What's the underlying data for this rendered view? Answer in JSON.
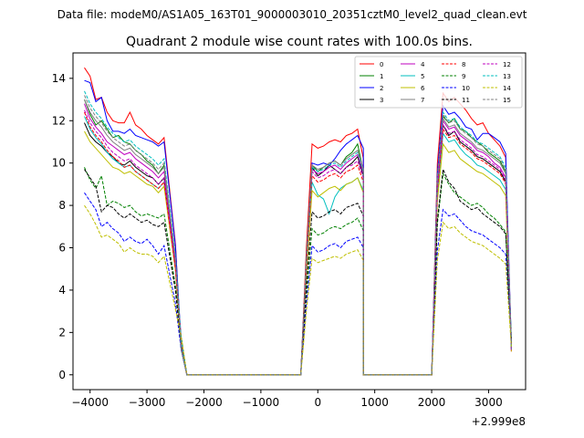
{
  "suptitle": "Data file: modeM0/AS1A05_163T01_9000003010_20351cztM0_level2_quad_clean.evt",
  "chart_data": {
    "type": "line",
    "title": "Quadrant 2 module wise count rates with 100.0s bins.",
    "xlabel": "",
    "ylabel": "",
    "offset_label": "+2.999e8",
    "xlim": [
      -4300,
      3650
    ],
    "ylim": [
      -0.7,
      15.2
    ],
    "xticks": [
      -4000,
      -3000,
      -2000,
      -1000,
      0,
      1000,
      2000,
      3000
    ],
    "yticks": [
      0,
      2,
      4,
      6,
      8,
      10,
      12,
      14
    ],
    "legend_position": "upper right",
    "legend_columns": 4,
    "series": [
      {
        "name": "0",
        "color": "#ff0000",
        "dash": "solid",
        "seg": [
          [
            14.5,
            14.1,
            13.0,
            13.1,
            12.4,
            12.0,
            11.9,
            11.9,
            12.4,
            11.8,
            11.6,
            11.3,
            11.1,
            10.9,
            11.2
          ],
          [
            10.9,
            10.7,
            10.8,
            11.0,
            11.1,
            11.0,
            11.3,
            11.4,
            11.6,
            10.2
          ],
          [
            13.3,
            12.9,
            13.1,
            12.8,
            12.5,
            12.1,
            11.8,
            11.9,
            11.4,
            11.1,
            10.8
          ]
        ]
      },
      {
        "name": "1",
        "color": "#008000",
        "dash": "solid",
        "seg": [
          [
            13.0,
            12.3,
            11.8,
            12.0,
            11.6,
            11.2,
            11.3,
            11.0,
            10.9,
            10.6,
            10.4,
            10.1,
            9.9,
            9.5,
            9.9
          ],
          [
            9.9,
            9.6,
            9.8,
            10.0,
            10.1,
            9.9,
            10.3,
            10.5,
            10.9,
            9.6
          ],
          [
            12.2,
            11.9,
            12.1,
            11.6,
            11.5,
            11.2,
            11.0,
            10.8,
            10.5,
            10.3,
            10.1
          ]
        ]
      },
      {
        "name": "2",
        "color": "#0000ff",
        "dash": "solid",
        "seg": [
          [
            13.9,
            13.8,
            12.9,
            13.1,
            12.0,
            11.5,
            11.5,
            11.4,
            11.6,
            11.3,
            11.2,
            11.1,
            11.0,
            10.8,
            11.0
          ],
          [
            10.0,
            9.9,
            10.0,
            9.9,
            10.2,
            10.6,
            10.9,
            11.1,
            11.3,
            10.7
          ],
          [
            12.7,
            12.3,
            12.4,
            12.1,
            11.7,
            11.6,
            11.1,
            11.4,
            11.4,
            11.2,
            11.0
          ]
        ]
      },
      {
        "name": "3",
        "color": "#000000",
        "dash": "solid",
        "seg": [
          [
            11.9,
            11.3,
            11.0,
            10.8,
            10.5,
            10.3,
            10.0,
            9.9,
            10.1,
            9.8,
            9.6,
            9.4,
            9.3,
            9.0,
            9.3
          ],
          [
            9.8,
            9.4,
            9.6,
            9.9,
            9.7,
            9.5,
            9.8,
            10.0,
            10.3,
            9.4
          ],
          [
            11.8,
            11.3,
            11.5,
            11.0,
            10.8,
            10.6,
            10.3,
            10.2,
            10.0,
            9.8,
            9.6
          ]
        ]
      },
      {
        "name": "4",
        "color": "#bf00bf",
        "dash": "solid",
        "seg": [
          [
            12.8,
            12.1,
            11.7,
            11.4,
            11.0,
            10.8,
            10.6,
            10.4,
            10.5,
            10.2,
            10.0,
            9.8,
            9.6,
            9.3,
            9.6
          ],
          [
            9.7,
            9.5,
            9.6,
            9.8,
            9.9,
            9.7,
            10.0,
            10.2,
            10.4,
            9.5
          ],
          [
            12.0,
            11.6,
            11.7,
            11.3,
            11.1,
            10.9,
            10.6,
            10.5,
            10.3,
            10.0,
            9.8
          ]
        ]
      },
      {
        "name": "5",
        "color": "#00bfbf",
        "dash": "solid",
        "seg": [
          [
            12.2,
            11.6,
            11.2,
            10.9,
            10.5,
            10.2,
            10.0,
            9.8,
            9.9,
            9.6,
            9.4,
            9.2,
            9.0,
            8.8,
            9.1
          ],
          [
            9.1,
            8.5,
            8.3,
            7.6,
            8.4,
            8.8,
            9.0,
            9.1,
            9.3,
            8.7
          ],
          [
            11.4,
            11.0,
            11.1,
            10.7,
            10.4,
            10.2,
            9.9,
            9.8,
            9.6,
            9.4,
            9.2
          ]
        ]
      },
      {
        "name": "6",
        "color": "#bfbf00",
        "dash": "solid",
        "seg": [
          [
            11.5,
            11.0,
            10.7,
            10.4,
            10.1,
            9.8,
            9.7,
            9.5,
            9.6,
            9.4,
            9.2,
            9.0,
            8.9,
            8.6,
            8.9
          ],
          [
            8.7,
            8.4,
            8.6,
            8.8,
            8.9,
            8.7,
            9.0,
            9.1,
            9.3,
            8.6
          ],
          [
            10.9,
            10.5,
            10.6,
            10.2,
            10.0,
            9.8,
            9.6,
            9.5,
            9.3,
            9.1,
            8.9
          ]
        ]
      },
      {
        "name": "7",
        "color": "#808080",
        "dash": "solid",
        "seg": [
          [
            13.0,
            12.4,
            12.0,
            11.7,
            11.3,
            11.0,
            10.8,
            10.6,
            10.7,
            10.4,
            10.2,
            10.0,
            9.8,
            9.5,
            9.8
          ],
          [
            9.9,
            9.7,
            9.8,
            10.0,
            10.1,
            9.9,
            10.2,
            10.4,
            10.6,
            9.7
          ],
          [
            12.1,
            11.7,
            11.8,
            11.4,
            11.2,
            11.0,
            10.7,
            10.6,
            10.4,
            10.2,
            10.0
          ]
        ]
      },
      {
        "name": "8",
        "color": "#ff0000",
        "dash": "dashed",
        "seg": [
          [
            12.4,
            11.7,
            11.3,
            11.0,
            10.6,
            10.3,
            10.1,
            9.8,
            9.9,
            9.6,
            9.4,
            9.2,
            9.0,
            8.8,
            9.1
          ],
          [
            9.4,
            9.1,
            9.2,
            9.4,
            9.5,
            9.3,
            9.6,
            9.7,
            9.9,
            9.1
          ],
          [
            11.6,
            11.2,
            11.3,
            10.9,
            10.7,
            10.5,
            10.2,
            10.1,
            9.9,
            9.7,
            9.5
          ]
        ]
      },
      {
        "name": "9",
        "color": "#008000",
        "dash": "dashed",
        "seg": [
          [
            9.8,
            9.2,
            8.8,
            9.4,
            8.0,
            8.2,
            8.1,
            7.9,
            8.0,
            7.7,
            7.5,
            7.6,
            7.5,
            7.4,
            7.6
          ],
          [
            6.9,
            6.6,
            6.7,
            6.9,
            7.0,
            6.9,
            7.1,
            7.2,
            7.4,
            6.8
          ],
          [
            9.5,
            9.0,
            8.6,
            8.4,
            8.2,
            8.0,
            8.1,
            7.9,
            7.6,
            7.4,
            7.1
          ]
        ]
      },
      {
        "name": "10",
        "color": "#0000ff",
        "dash": "dashed",
        "seg": [
          [
            8.6,
            8.2,
            7.8,
            7.0,
            7.2,
            6.9,
            6.7,
            6.3,
            6.5,
            6.3,
            6.2,
            6.4,
            6.1,
            5.7,
            6.1
          ],
          [
            6.1,
            5.8,
            5.9,
            6.1,
            6.2,
            6.0,
            6.3,
            6.4,
            6.5,
            6.0
          ],
          [
            7.8,
            7.5,
            7.6,
            7.3,
            7.0,
            6.8,
            6.7,
            6.6,
            6.4,
            6.2,
            6.0
          ]
        ]
      },
      {
        "name": "11",
        "color": "#000000",
        "dash": "dashed",
        "seg": [
          [
            9.7,
            9.3,
            8.9,
            7.7,
            8.0,
            7.9,
            7.6,
            7.4,
            7.6,
            7.4,
            7.2,
            7.3,
            7.1,
            7.0,
            7.2
          ],
          [
            7.7,
            7.4,
            7.5,
            7.7,
            7.8,
            7.6,
            7.9,
            8.0,
            8.1,
            7.5
          ],
          [
            9.7,
            9.1,
            8.8,
            8.2,
            8.0,
            7.8,
            7.9,
            7.6,
            7.4,
            7.2,
            7.0
          ]
        ]
      },
      {
        "name": "12",
        "color": "#bf00bf",
        "dash": "dashed",
        "seg": [
          [
            12.5,
            11.9,
            11.5,
            11.2,
            10.8,
            10.5,
            10.3,
            10.1,
            10.2,
            9.9,
            9.7,
            9.5,
            9.3,
            9.0,
            9.3
          ],
          [
            9.6,
            9.3,
            9.4,
            9.6,
            9.7,
            9.5,
            9.8,
            9.9,
            10.1,
            9.3
          ],
          [
            11.8,
            11.4,
            11.5,
            11.1,
            10.9,
            10.7,
            10.4,
            10.3,
            10.1,
            9.9,
            9.7
          ]
        ]
      },
      {
        "name": "13",
        "color": "#00bfbf",
        "dash": "dashed",
        "seg": [
          [
            13.4,
            12.8,
            12.4,
            12.1,
            11.7,
            11.4,
            11.2,
            11.0,
            11.1,
            10.8,
            10.6,
            10.4,
            10.2,
            9.9,
            10.2
          ],
          [
            9.8,
            9.6,
            9.7,
            9.9,
            10.0,
            9.8,
            10.1,
            10.3,
            10.5,
            9.6
          ],
          [
            12.4,
            12.0,
            12.1,
            11.7,
            11.5,
            11.3,
            11.0,
            10.9,
            10.7,
            10.5,
            10.3
          ]
        ]
      },
      {
        "name": "14",
        "color": "#bfbf00",
        "dash": "dashed",
        "seg": [
          [
            8.0,
            7.6,
            7.1,
            6.5,
            6.6,
            6.4,
            6.2,
            5.8,
            6.0,
            5.8,
            5.7,
            5.7,
            5.6,
            5.3,
            5.6
          ],
          [
            5.5,
            5.3,
            5.4,
            5.5,
            5.6,
            5.5,
            5.7,
            5.8,
            5.9,
            5.4
          ],
          [
            7.2,
            6.9,
            7.0,
            6.7,
            6.5,
            6.3,
            6.2,
            6.1,
            5.9,
            5.7,
            5.5
          ]
        ]
      },
      {
        "name": "15",
        "color": "#808080",
        "dash": "dashed",
        "seg": [
          [
            13.2,
            12.6,
            12.2,
            11.9,
            11.5,
            11.2,
            11.0,
            10.8,
            10.9,
            10.6,
            10.4,
            10.2,
            10.0,
            9.7,
            10.0
          ],
          [
            9.9,
            9.7,
            9.8,
            10.0,
            10.1,
            9.9,
            10.2,
            10.4,
            10.6,
            9.7
          ],
          [
            12.3,
            11.9,
            12.0,
            11.6,
            11.4,
            11.2,
            10.9,
            10.8,
            10.6,
            10.4,
            10.2
          ]
        ]
      }
    ]
  }
}
